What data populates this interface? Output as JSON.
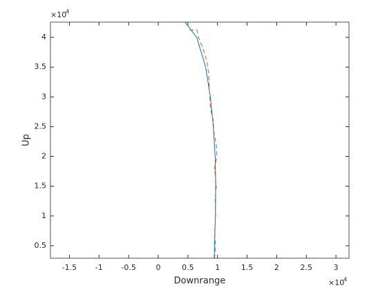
{
  "chart_data": {
    "type": "line",
    "xlabel": "Downrange",
    "ylabel": "Up",
    "x_exponent_base": "×10",
    "x_exponent_power": "4",
    "y_exponent_base": "×10",
    "y_exponent_power": "4",
    "xlim": [
      -18200,
      32200
    ],
    "ylim": [
      2900,
      42560
    ],
    "xticks": [
      {
        "value": -15000,
        "label": "-1.5"
      },
      {
        "value": -10000,
        "label": "-1"
      },
      {
        "value": -5000,
        "label": "-0.5"
      },
      0,
      {
        "value": 5000,
        "label": "0.5"
      },
      {
        "value": 10000,
        "label": "1"
      },
      {
        "value": 15000,
        "label": "1.5"
      },
      {
        "value": 20000,
        "label": "2"
      },
      {
        "value": 25000,
        "label": "2.5"
      },
      {
        "value": 30000,
        "label": "3"
      }
    ],
    "yticks": [
      {
        "value": 5000,
        "label": "0.5"
      },
      {
        "value": 10000,
        "label": "1"
      },
      {
        "value": 15000,
        "label": "1.5"
      },
      {
        "value": 20000,
        "label": "2"
      },
      {
        "value": 25000,
        "label": "2.5"
      },
      {
        "value": 30000,
        "label": "3"
      },
      {
        "value": 35000,
        "label": "3.5"
      },
      {
        "value": 40000,
        "label": "4"
      }
    ],
    "series": [
      {
        "color": "#0072bd",
        "dash": false,
        "x": [
          4500,
          6500,
          8000,
          8800,
          9300,
          9600,
          9700,
          9650,
          9500,
          9450
        ],
        "values": [
          42560,
          40000,
          35000,
          30000,
          25000,
          20000,
          15000,
          10000,
          5000,
          2900
        ]
      },
      {
        "color": "#d95319",
        "dash": true,
        "x": [
          5300,
          6500,
          6800,
          7600,
          8200,
          8500,
          8600,
          8700,
          8800,
          9300,
          9400,
          9800,
          9900,
          9500,
          9800,
          9600,
          9700,
          9500,
          9700,
          9500
        ],
        "values": [
          41200,
          41300,
          40000,
          38000,
          36000,
          34000,
          32000,
          30000,
          28000,
          26000,
          24000,
          22000,
          20000,
          18000,
          15000,
          13000,
          10000,
          7000,
          5000,
          2900
        ]
      }
    ]
  }
}
